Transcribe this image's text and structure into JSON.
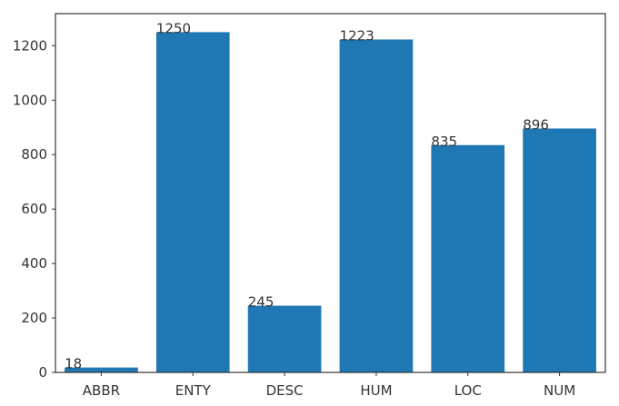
{
  "chart_data": {
    "type": "bar",
    "categories": [
      "ABBR",
      "ENTY",
      "DESC",
      "HUM",
      "LOC",
      "NUM"
    ],
    "values": [
      18,
      1250,
      245,
      1223,
      835,
      896
    ],
    "data_labels": [
      "18",
      "1250",
      "245",
      "1223",
      "835",
      "896"
    ],
    "ylim": [
      0,
      1318
    ],
    "yticks": [
      0,
      200,
      400,
      600,
      800,
      1000,
      1200
    ],
    "ytick_labels": [
      "0",
      "200",
      "400",
      "600",
      "800",
      "1000",
      "1200"
    ],
    "grid": false,
    "colors": {
      "bar": "#1f77b4",
      "axes": "#333333",
      "text": "#333333"
    }
  }
}
